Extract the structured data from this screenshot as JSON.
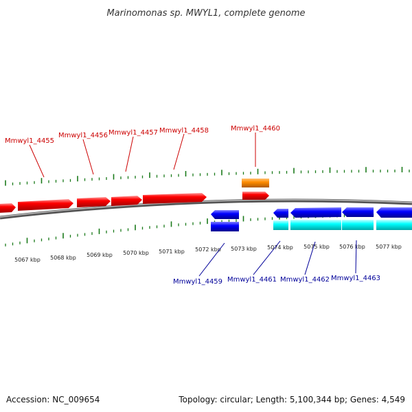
{
  "title": "Marinomonas sp. MWYL1, complete genome",
  "footer": {
    "accession": "Accession: NC_009654",
    "summary": "Topology: circular; Length: 5,100,344 bp; Genes: 4,549"
  },
  "colors": {
    "forward_gene": "#ff0000",
    "forward_alt": "#ff8c00",
    "reverse_gene": "#0000ff",
    "reverse_alt": "#00ffff",
    "tick": "#1a7a1a",
    "backbone": "#7a7a7a",
    "forward_label": "#cc0000",
    "reverse_label": "#000099"
  },
  "ruler_labels": [
    "5067 kbp",
    "5068 kbp",
    "5069 kbp",
    "5070 kbp",
    "5071 kbp",
    "5072 kbp",
    "5073 kbp",
    "5074 kbp",
    "5075 kbp",
    "5076 kbp",
    "5077 kbp"
  ],
  "forward_genes": [
    {
      "label": "Mmwyl1_4455"
    },
    {
      "label": "Mmwyl1_4456"
    },
    {
      "label": "Mmwyl1_4457"
    },
    {
      "label": "Mmwyl1_4458"
    },
    {
      "label": "Mmwyl1_4460"
    }
  ],
  "reverse_genes": [
    {
      "label": "Mmwyl1_4459"
    },
    {
      "label": "Mmwyl1_4461"
    },
    {
      "label": "Mmwyl1_4462"
    },
    {
      "label": "Mmwyl1_4463"
    }
  ]
}
